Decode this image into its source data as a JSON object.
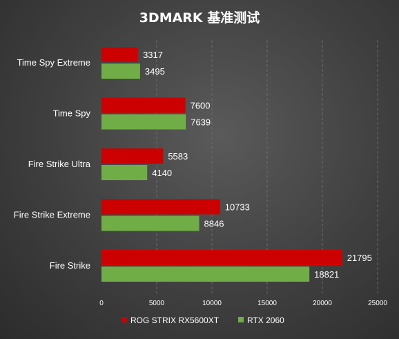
{
  "chart_data": {
    "type": "bar",
    "orientation": "horizontal",
    "title": "3DMARK 基准测试",
    "categories": [
      "Time Spy Extreme",
      "Time Spy",
      "Fire Strike Ultra",
      "Fire Strike Extreme",
      "Fire Strike"
    ],
    "series": [
      {
        "name": "ROG STRIX RX5600XT",
        "values": [
          3317,
          7600,
          5583,
          10733,
          21795
        ]
      },
      {
        "name": "RTX 2060",
        "values": [
          3495,
          7639,
          4140,
          8846,
          18821
        ]
      }
    ],
    "xlim": [
      0,
      25000
    ],
    "xticks": [
      0,
      5000,
      10000,
      15000,
      20000,
      25000
    ],
    "grid": true,
    "legend": "bottom",
    "colors": {
      "series_0": "#cc0000",
      "series_1": "#70ad47"
    }
  }
}
